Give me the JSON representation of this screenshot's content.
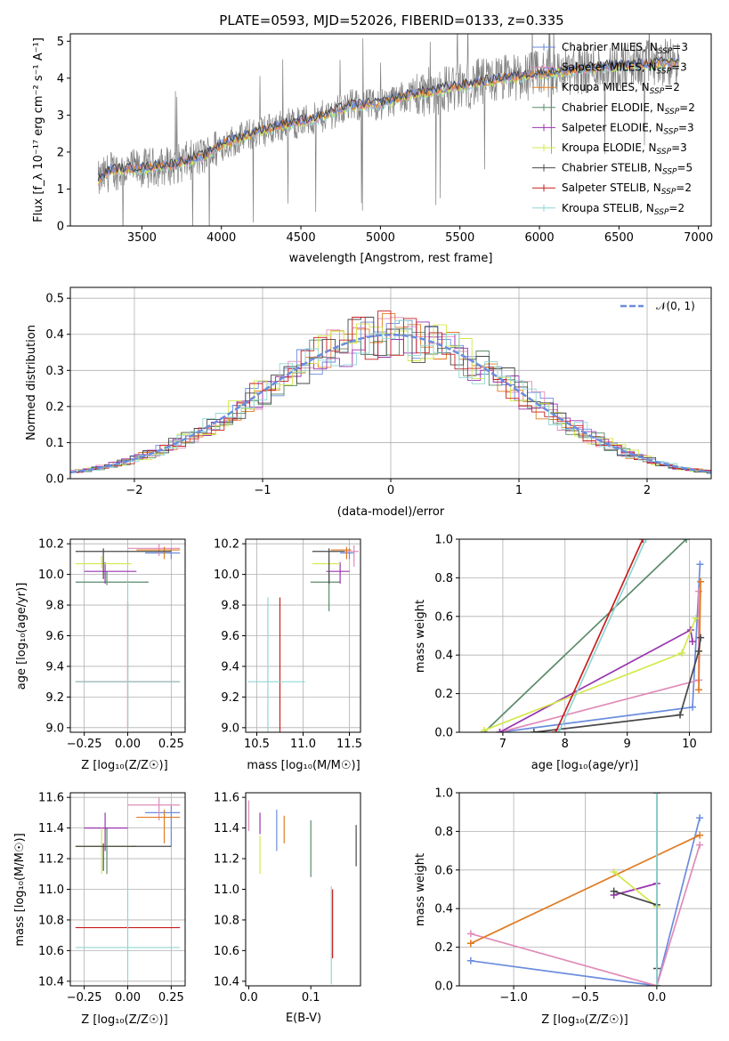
{
  "figure_title": "PLATE=0593, MJD=52026, FIBERID=0133, z=0.335",
  "colors": {
    "chabrier_miles": "#6a8dde",
    "salpeter_miles": "#e08bb8",
    "kroupa_miles": "#e07b22",
    "chabrier_elodie": "#5a8a6a",
    "salpeter_elodie": "#9a33b0",
    "kroupa_elodie": "#d3e84a",
    "chabrier_stelib": "#484848",
    "salpeter_stelib": "#c81e1e",
    "kroupa_stelib": "#8fd6d4",
    "data": "#808080",
    "gauss": "#6a8dde",
    "grid": "#b0b0b0"
  },
  "panels": {
    "spectrum": {
      "ylabel": "Flux [f_λ 10⁻¹⁷ erg cm⁻² s⁻¹ A⁻¹]",
      "xlabel": "wavelength [Angstrom, rest frame]"
    },
    "residuals": {
      "ylabel": "Normed distribution",
      "xlabel": "(data-model)/error",
      "gauss_label": "𝒩(0, 1)"
    },
    "age_z": {
      "xlabel": "Z [log₁₀(Z/Z☉)]",
      "ylabel": "age  [log₁₀(age/yr)]"
    },
    "age_mass": {
      "xlabel": "mass [log₁₀(M/M☉)]"
    },
    "weight_age": {
      "xlabel": "age  [log₁₀(age/yr)]",
      "ylabel": "mass weight"
    },
    "mass_z": {
      "xlabel": "Z [log₁₀(Z/Z☉)]",
      "ylabel": "mass [log₁₀(M/M☉)]"
    },
    "mass_ebv": {
      "xlabel": "E(B-V)"
    },
    "weight_z": {
      "xlabel": "Z [log₁₀(Z/Z☉)]",
      "ylabel": "mass weight"
    }
  },
  "legend": [
    {
      "label": "Chabrier MILES, N",
      "nssp": "3",
      "color_key": "chabrier_miles"
    },
    {
      "label": "Salpeter MILES, N",
      "nssp": "3",
      "color_key": "salpeter_miles"
    },
    {
      "label": "Kroupa MILES, N",
      "nssp": "2",
      "color_key": "kroupa_miles"
    },
    {
      "label": "Chabrier ELODIE, N",
      "nssp": "2",
      "color_key": "chabrier_elodie"
    },
    {
      "label": "Salpeter ELODIE, N",
      "nssp": "3",
      "color_key": "salpeter_elodie"
    },
    {
      "label": "Kroupa ELODIE, N",
      "nssp": "3",
      "color_key": "kroupa_elodie"
    },
    {
      "label": "Chabrier STELIB, N",
      "nssp": "5",
      "color_key": "chabrier_stelib"
    },
    {
      "label": "Salpeter STELIB, N",
      "nssp": "2",
      "color_key": "salpeter_stelib"
    },
    {
      "label": "Kroupa STELIB, N",
      "nssp": "2",
      "color_key": "kroupa_stelib"
    }
  ],
  "chart_data": [
    {
      "id": "spectrum",
      "type": "line",
      "xlim": [
        3050,
        7080
      ],
      "ylim": [
        0,
        5.2
      ],
      "xticks": [
        3500,
        4000,
        4500,
        5000,
        5500,
        6000,
        6500,
        7000
      ],
      "yticks": [
        0,
        1,
        2,
        3,
        4,
        5
      ],
      "grid": false,
      "legend_position": "top-right",
      "continuum": [
        [
          3225,
          1.2
        ],
        [
          3300,
          1.5
        ],
        [
          3500,
          1.55
        ],
        [
          3700,
          1.65
        ],
        [
          3900,
          1.9
        ],
        [
          4000,
          2.2
        ],
        [
          4200,
          2.5
        ],
        [
          4400,
          2.75
        ],
        [
          4600,
          2.9
        ],
        [
          4800,
          3.25
        ],
        [
          5000,
          3.3
        ],
        [
          5200,
          3.55
        ],
        [
          5400,
          3.7
        ],
        [
          5600,
          3.85
        ],
        [
          5800,
          4.0
        ],
        [
          6000,
          4.1
        ],
        [
          6200,
          4.2
        ],
        [
          6400,
          4.3
        ],
        [
          6600,
          4.35
        ],
        [
          6800,
          4.4
        ],
        [
          6880,
          4.45
        ]
      ]
    },
    {
      "id": "residuals",
      "type": "histogram",
      "xlim": [
        -2.5,
        2.5
      ],
      "ylim": [
        0,
        0.53
      ],
      "xticks": [
        -2,
        -1,
        0,
        1,
        2
      ],
      "yticks": [
        0.0,
        0.1,
        0.2,
        0.3,
        0.4,
        0.5
      ],
      "grid": true,
      "legend_position": "top-right",
      "bin_width": 0.1,
      "gaussian": {
        "mean": 0,
        "sigma": 1
      }
    },
    {
      "id": "age_z",
      "type": "errorbar",
      "xlim": [
        -0.33,
        0.33
      ],
      "ylim": [
        8.97,
        10.23
      ],
      "xticks": [
        -0.25,
        0.0,
        0.25
      ],
      "yticks": [
        9.0,
        9.2,
        9.4,
        9.6,
        9.8,
        10.0,
        10.2
      ],
      "grid": true,
      "points": [
        {
          "s": "chabrier_miles",
          "x": 0.25,
          "y": 10.14,
          "xlo": 0.1,
          "xhi": 0.3,
          "ylo": 10.1,
          "yhi": 10.17
        },
        {
          "s": "salpeter_miles",
          "x": 0.18,
          "y": 10.17,
          "xlo": 0.0,
          "xhi": 0.3,
          "ylo": 10.12,
          "yhi": 10.2
        },
        {
          "s": "kroupa_miles",
          "x": 0.21,
          "y": 10.16,
          "xlo": 0.05,
          "xhi": 0.3,
          "ylo": 10.1,
          "yhi": 10.18
        },
        {
          "s": "chabrier_elodie",
          "x": -0.12,
          "y": 9.95,
          "xlo": -0.3,
          "xhi": 0.12,
          "ylo": 9.93,
          "yhi": 10.02
        },
        {
          "s": "salpeter_elodie",
          "x": -0.13,
          "y": 10.02,
          "xlo": -0.25,
          "xhi": 0.05,
          "ylo": 9.94,
          "yhi": 10.08
        },
        {
          "s": "kroupa_elodie",
          "x": -0.15,
          "y": 10.07,
          "xlo": -0.3,
          "xhi": 0.02,
          "ylo": 10.04,
          "yhi": 10.12
        },
        {
          "s": "chabrier_stelib",
          "x": -0.14,
          "y": 10.15,
          "xlo": -0.3,
          "xhi": 0.25,
          "ylo": 9.97,
          "yhi": 10.17
        },
        {
          "s": "salpeter_stelib",
          "x": 0.0,
          "y": 9.3,
          "xlo": -0.3,
          "xhi": 0.3,
          "ylo": 9.0,
          "yhi": 9.82
        },
        {
          "s": "kroupa_stelib",
          "x": 0.0,
          "y": 9.3,
          "xlo": -0.3,
          "xhi": 0.3,
          "ylo": 9.0,
          "yhi": 9.95
        }
      ]
    },
    {
      "id": "age_mass",
      "type": "errorbar",
      "xlim": [
        10.38,
        11.62
      ],
      "ylim": [
        8.97,
        10.23
      ],
      "xticks": [
        10.5,
        11.0,
        11.5
      ],
      "yticks": [
        9.0,
        9.2,
        9.4,
        9.6,
        9.8,
        10.0,
        10.2
      ],
      "grid": true,
      "points": [
        {
          "s": "chabrier_miles",
          "x": 11.5,
          "y": 10.14,
          "xlo": 11.4,
          "xhi": 11.55,
          "ylo": 10.1,
          "yhi": 10.17
        },
        {
          "s": "salpeter_miles",
          "x": 11.55,
          "y": 10.15,
          "xlo": 11.45,
          "xhi": 11.6,
          "ylo": 10.05,
          "yhi": 10.19
        },
        {
          "s": "kroupa_miles",
          "x": 11.47,
          "y": 10.16,
          "xlo": 11.3,
          "xhi": 11.52,
          "ylo": 10.1,
          "yhi": 10.18
        },
        {
          "s": "chabrier_elodie",
          "x": 11.28,
          "y": 9.95,
          "xlo": 11.08,
          "xhi": 11.4,
          "ylo": 9.76,
          "yhi": 10.0
        },
        {
          "s": "salpeter_elodie",
          "x": 11.4,
          "y": 10.02,
          "xlo": 11.25,
          "xhi": 11.5,
          "ylo": 9.94,
          "yhi": 10.08
        },
        {
          "s": "kroupa_elodie",
          "x": 11.28,
          "y": 10.07,
          "xlo": 11.1,
          "xhi": 11.4,
          "ylo": 10.04,
          "yhi": 10.12
        },
        {
          "s": "chabrier_stelib",
          "x": 11.28,
          "y": 10.15,
          "xlo": 11.1,
          "xhi": 11.45,
          "ylo": 9.94,
          "yhi": 10.17
        },
        {
          "s": "salpeter_stelib",
          "x": 10.75,
          "y": 9.3,
          "xlo": 10.75,
          "xhi": 10.75,
          "ylo": 8.97,
          "yhi": 9.85
        },
        {
          "s": "kroupa_stelib",
          "x": 10.62,
          "y": 9.3,
          "xlo": 10.4,
          "xhi": 11.02,
          "ylo": 8.97,
          "yhi": 9.85
        }
      ]
    },
    {
      "id": "weight_age",
      "type": "line",
      "xlim": [
        6.3,
        10.35
      ],
      "ylim": [
        0,
        1
      ],
      "xticks": [
        7,
        8,
        9,
        10
      ],
      "yticks": [
        0.0,
        0.2,
        0.4,
        0.6,
        0.8,
        1.0
      ],
      "grid": true,
      "series": [
        {
          "s": "chabrier_miles",
          "points": [
            [
              6.95,
              0.0
            ],
            [
              10.05,
              0.13
            ],
            [
              10.17,
              0.87
            ]
          ]
        },
        {
          "s": "salpeter_miles",
          "points": [
            [
              6.95,
              0.0
            ],
            [
              10.15,
              0.27
            ],
            [
              10.15,
              0.73
            ]
          ]
        },
        {
          "s": "kroupa_miles",
          "points": [
            [
              10.15,
              0.22
            ],
            [
              10.18,
              0.78
            ]
          ]
        },
        {
          "s": "chabrier_elodie",
          "points": [
            [
              6.7,
              0.0
            ],
            [
              9.95,
              1.0
            ]
          ]
        },
        {
          "s": "salpeter_elodie",
          "points": [
            [
              6.95,
              0.0
            ],
            [
              10.02,
              0.53
            ],
            [
              10.05,
              0.47
            ]
          ]
        },
        {
          "s": "kroupa_elodie",
          "points": [
            [
              6.7,
              0.01
            ],
            [
              9.88,
              0.41
            ],
            [
              10.1,
              0.59
            ]
          ]
        },
        {
          "s": "chabrier_stelib",
          "points": [
            [
              7.5,
              0.0
            ],
            [
              9.85,
              0.09
            ],
            [
              10.15,
              0.42
            ],
            [
              10.18,
              0.49
            ]
          ]
        },
        {
          "s": "salpeter_stelib",
          "points": [
            [
              7.85,
              0.0
            ],
            [
              9.25,
              1.0
            ]
          ]
        },
        {
          "s": "kroupa_stelib",
          "points": [
            [
              7.9,
              0.0
            ],
            [
              9.3,
              1.0
            ]
          ]
        }
      ]
    },
    {
      "id": "mass_z",
      "type": "errorbar",
      "xlim": [
        -0.33,
        0.33
      ],
      "ylim": [
        10.37,
        11.63
      ],
      "xticks": [
        -0.25,
        0.0,
        0.25
      ],
      "yticks": [
        10.4,
        10.6,
        10.8,
        11.0,
        11.2,
        11.4,
        11.6
      ],
      "grid": true,
      "points": [
        {
          "s": "chabrier_miles",
          "x": 0.25,
          "y": 11.5,
          "xlo": 0.1,
          "xhi": 0.3,
          "ylo": 11.28,
          "yhi": 11.55
        },
        {
          "s": "salpeter_miles",
          "x": 0.18,
          "y": 11.55,
          "xlo": 0.0,
          "xhi": 0.3,
          "ylo": 11.45,
          "yhi": 11.6
        },
        {
          "s": "kroupa_miles",
          "x": 0.21,
          "y": 11.47,
          "xlo": 0.05,
          "xhi": 0.3,
          "ylo": 11.3,
          "yhi": 11.52
        },
        {
          "s": "chabrier_elodie",
          "x": -0.12,
          "y": 11.28,
          "xlo": -0.3,
          "xhi": 0.05,
          "ylo": 11.1,
          "yhi": 11.4
        },
        {
          "s": "salpeter_elodie",
          "x": -0.13,
          "y": 11.4,
          "xlo": -0.25,
          "xhi": 0.0,
          "ylo": 11.25,
          "yhi": 11.5
        },
        {
          "s": "kroupa_elodie",
          "x": -0.15,
          "y": 11.28,
          "xlo": -0.3,
          "xhi": 0.02,
          "ylo": 11.1,
          "yhi": 11.4
        },
        {
          "s": "chabrier_stelib",
          "x": -0.14,
          "y": 11.28,
          "xlo": -0.3,
          "xhi": 0.25,
          "ylo": 11.12,
          "yhi": 11.3
        },
        {
          "s": "salpeter_stelib",
          "x": 0.0,
          "y": 10.75,
          "xlo": -0.3,
          "xhi": 0.3,
          "ylo": 10.75,
          "yhi": 10.75
        },
        {
          "s": "kroupa_stelib",
          "x": 0.0,
          "y": 10.62,
          "xlo": -0.3,
          "xhi": 0.3,
          "ylo": 10.4,
          "yhi": 11.02
        }
      ]
    },
    {
      "id": "mass_ebv",
      "type": "errorbar",
      "xlim": [
        -0.005,
        0.18
      ],
      "ylim": [
        10.37,
        11.63
      ],
      "xticks": [
        0.0,
        0.1
      ],
      "yticks": [
        10.4,
        10.6,
        10.8,
        11.0,
        11.2,
        11.4,
        11.6
      ],
      "grid": false,
      "points": [
        {
          "s": "chabrier_miles",
          "x": 0.045,
          "y": 11.4,
          "xlo": 0.045,
          "xhi": 0.045,
          "ylo": 11.25,
          "yhi": 11.52
        },
        {
          "s": "salpeter_miles",
          "x": 0.0,
          "y": 11.48,
          "xlo": 0.0,
          "xhi": 0.0,
          "ylo": 11.38,
          "yhi": 11.58
        },
        {
          "s": "kroupa_miles",
          "x": 0.057,
          "y": 11.38,
          "xlo": 0.057,
          "xhi": 0.057,
          "ylo": 11.3,
          "yhi": 11.48
        },
        {
          "s": "chabrier_elodie",
          "x": 0.1,
          "y": 11.28,
          "xlo": 0.1,
          "xhi": 0.1,
          "ylo": 11.08,
          "yhi": 11.45
        },
        {
          "s": "salpeter_elodie",
          "x": 0.018,
          "y": 11.42,
          "xlo": 0.018,
          "xhi": 0.018,
          "ylo": 11.36,
          "yhi": 11.5
        },
        {
          "s": "kroupa_elodie",
          "x": 0.018,
          "y": 11.25,
          "xlo": 0.018,
          "xhi": 0.018,
          "ylo": 11.1,
          "yhi": 11.35
        },
        {
          "s": "chabrier_stelib",
          "x": 0.173,
          "y": 11.3,
          "xlo": 0.173,
          "xhi": 0.173,
          "ylo": 11.15,
          "yhi": 11.42
        },
        {
          "s": "salpeter_stelib",
          "x": 0.135,
          "y": 10.75,
          "xlo": 0.135,
          "xhi": 0.135,
          "ylo": 10.55,
          "yhi": 11.0
        },
        {
          "s": "kroupa_stelib",
          "x": 0.133,
          "y": 10.62,
          "xlo": 0.133,
          "xhi": 0.133,
          "ylo": 10.38,
          "yhi": 11.02
        }
      ]
    },
    {
      "id": "weight_z",
      "type": "line",
      "xlim": [
        -1.38,
        0.38
      ],
      "ylim": [
        0,
        1
      ],
      "xticks": [
        -1.0,
        -0.5,
        0.0
      ],
      "yticks": [
        0.0,
        0.2,
        0.4,
        0.6,
        0.8,
        1.0
      ],
      "grid": true,
      "series": [
        {
          "s": "chabrier_miles",
          "points": [
            [
              -1.3,
              0.13
            ],
            [
              0.0,
              0.0
            ],
            [
              0.3,
              0.87
            ]
          ]
        },
        {
          "s": "salpeter_miles",
          "points": [
            [
              -1.3,
              0.27
            ],
            [
              0.0,
              0.0
            ],
            [
              0.3,
              0.73
            ]
          ]
        },
        {
          "s": "kroupa_miles",
          "points": [
            [
              -1.3,
              0.22
            ],
            [
              0.3,
              0.78
            ]
          ]
        },
        {
          "s": "chabrier_elodie",
          "points": [
            [
              0.0,
              0.0
            ],
            [
              0.0,
              1.0
            ]
          ]
        },
        {
          "s": "salpeter_elodie",
          "points": [
            [
              -0.3,
              0.47
            ],
            [
              0.0,
              0.53
            ]
          ]
        },
        {
          "s": "kroupa_elodie",
          "points": [
            [
              -0.3,
              0.59
            ],
            [
              0.0,
              0.41
            ]
          ]
        },
        {
          "s": "chabrier_stelib",
          "points": [
            [
              -0.3,
              0.49
            ],
            [
              0.0,
              0.42
            ],
            [
              0.0,
              0.09
            ]
          ]
        },
        {
          "s": "salpeter_stelib",
          "points": [
            [
              0.0,
              0.0
            ],
            [
              0.0,
              1.0
            ]
          ]
        },
        {
          "s": "kroupa_stelib",
          "points": [
            [
              0.0,
              0.0
            ],
            [
              0.0,
              1.0
            ]
          ]
        }
      ]
    }
  ]
}
